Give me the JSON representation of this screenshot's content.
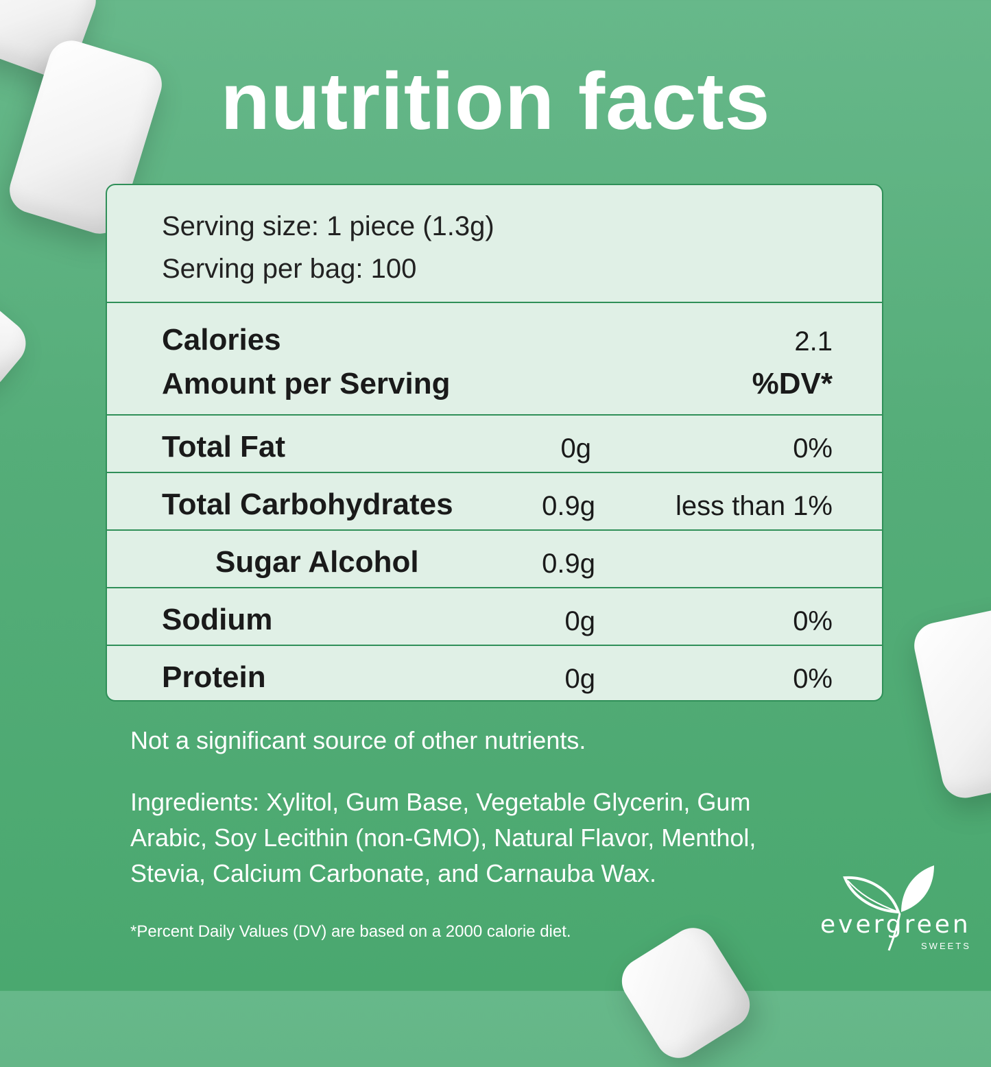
{
  "title": "nutrition facts",
  "serving": {
    "size": "Serving size: 1 piece (1.3g)",
    "per_bag": "Serving per bag: 100"
  },
  "calories": {
    "label": "Calories",
    "value": "2.1",
    "amount_label": "Amount per Serving",
    "dv_label": "%DV*"
  },
  "rows": [
    {
      "label": "Total Fat",
      "amount": "0g",
      "dv": "0%"
    },
    {
      "label": "Total Carbohydrates",
      "amount": "0.9g",
      "dv": "less than 1%"
    },
    {
      "label": "Sugar Alcohol",
      "amount": "0.9g",
      "dv": ""
    },
    {
      "label": "Sodium",
      "amount": "0g",
      "dv": "0%"
    },
    {
      "label": "Protein",
      "amount": "0g",
      "dv": "0%"
    }
  ],
  "notes": {
    "other": "Not a significant source of other nutrients.",
    "ingredients": "Ingredients: Xylitol, Gum Base, Vegetable Glycerin, Gum Arabic, Soy Lecithin (non-GMO), Natural Flavor, Menthol, Stevia, Calcium Carbonate, and Carnauba Wax.",
    "footnote": "*Percent Daily Values (DV) are based on a 2000 calorie diet."
  },
  "brand": {
    "name": "evergreen",
    "sub": "SWEETS"
  },
  "colors": {
    "background": "#5cb17f",
    "panel": "#e0f0e6",
    "border": "#2f8f58",
    "text_light": "#ffffff",
    "text_dark": "#1a1a1a"
  }
}
